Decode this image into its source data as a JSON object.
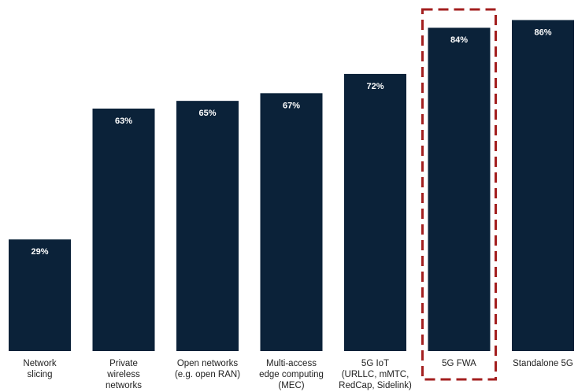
{
  "chart_data": {
    "type": "bar",
    "categories": [
      [
        "Network",
        "slicing"
      ],
      [
        "Private",
        "wireless",
        "networks"
      ],
      [
        "Open networks",
        "(e.g. open RAN)"
      ],
      [
        "Multi-access",
        "edge computing",
        "(MEC)"
      ],
      [
        "5G IoT",
        "(URLLC, mMTC,",
        "RedCap, Sidelink)"
      ],
      [
        "5G FWA"
      ],
      [
        "Standalone 5G"
      ]
    ],
    "values": [
      29,
      63,
      65,
      67,
      72,
      84,
      86
    ],
    "value_labels": [
      "29%",
      "63%",
      "65%",
      "67%",
      "72%",
      "84%",
      "86%"
    ],
    "ylim": [
      0,
      100
    ],
    "grid": false,
    "legend": "none",
    "highlighted_category_index": 5,
    "colors": {
      "bar": "#0b2239",
      "bar_label": "#ffffff",
      "highlight_border": "#a31f1f",
      "category_text": "#222222"
    }
  }
}
